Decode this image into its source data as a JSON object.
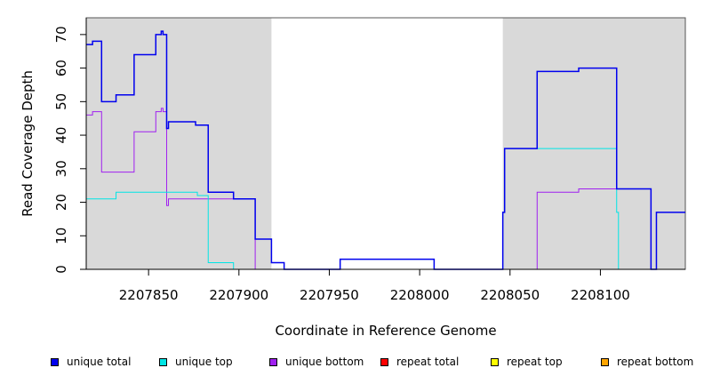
{
  "chart_data": {
    "type": "line",
    "title": "",
    "xlabel": "Coordinate in Reference Genome",
    "ylabel": "Read Coverage Depth",
    "xlim": [
      2207815.5,
      2208147
    ],
    "ylim": [
      0,
      75
    ],
    "xticks": [
      2207850,
      2207900,
      2207950,
      2208000,
      2208050,
      2208100
    ],
    "xtick_labels": [
      "2207850",
      "2207900",
      "2207950",
      "2208000",
      "2208050",
      "2208100"
    ],
    "yticks": [
      0,
      10,
      20,
      30,
      40,
      50,
      60,
      70
    ],
    "ytick_labels": [
      "0",
      "10",
      "20",
      "30",
      "40",
      "50",
      "60",
      "70"
    ],
    "shaded_regions": [
      {
        "from": 2207815.5,
        "to": 2207918,
        "color": "#d9d9d9"
      },
      {
        "from": 2208046,
        "to": 2208147,
        "color": "#d9d9d9"
      }
    ],
    "legend_position": "bottom",
    "series": [
      {
        "name": "unique total",
        "color": "#0000ee",
        "x": [
          2207815.5,
          2207819,
          2207823,
          2207824,
          2207831,
          2207832,
          2207841,
          2207842,
          2207853,
          2207854,
          2207857,
          2207858,
          2207860,
          2207861,
          2207875,
          2207876,
          2207882,
          2207883,
          2207896,
          2207897,
          2207908,
          2207909,
          2207917,
          2207918,
          2207924,
          2207925,
          2207955,
          2207956,
          2208007,
          2208008,
          2208046,
          2208047,
          2208064,
          2208065,
          2208087,
          2208088,
          2208108,
          2208109,
          2208127,
          2208128,
          2208130,
          2208131,
          2208147
        ],
        "y": [
          67,
          68,
          68,
          50,
          50,
          52,
          52,
          64,
          64,
          70,
          71,
          70,
          42,
          44,
          44,
          43,
          43,
          23,
          23,
          21,
          21,
          9,
          9,
          2,
          2,
          0,
          0,
          3,
          3,
          0,
          17,
          36,
          36,
          59,
          59,
          60,
          60,
          24,
          24,
          0,
          0,
          17,
          17
        ]
      },
      {
        "name": "unique top",
        "color": "#00e5e5",
        "x": [
          2207815.5,
          2207831,
          2207832,
          2207876,
          2207877,
          2207882,
          2207883,
          2207896,
          2207897,
          2207925,
          2207955,
          2207956,
          2208007,
          2208008,
          2208046,
          2208047,
          2208108,
          2208109,
          2208110,
          2208147
        ],
        "y": [
          21,
          21,
          23,
          23,
          22,
          22,
          2,
          2,
          0,
          0,
          0,
          3,
          3,
          0,
          17,
          36,
          36,
          17,
          0,
          0
        ]
      },
      {
        "name": "unique bottom",
        "color": "#a020f0",
        "x": [
          2207815.5,
          2207819,
          2207823,
          2207824,
          2207841,
          2207842,
          2207853,
          2207854,
          2207857,
          2207858,
          2207860,
          2207861,
          2207908,
          2207909,
          2208064,
          2208065,
          2208087,
          2208088,
          2208127,
          2208128,
          2208147
        ],
        "y": [
          46,
          47,
          47,
          29,
          29,
          41,
          41,
          47,
          48,
          47,
          19,
          21,
          21,
          0,
          0,
          23,
          23,
          24,
          24,
          0,
          0
        ]
      },
      {
        "name": "repeat total",
        "color": "#ff0000",
        "x": [
          2207815.5,
          2208147
        ],
        "y": [
          0,
          0
        ]
      },
      {
        "name": "repeat top",
        "color": "#ffff00",
        "x": [
          2207815.5,
          2208147
        ],
        "y": [
          0,
          0
        ]
      },
      {
        "name": "repeat bottom",
        "color": "#ffa500",
        "x": [
          2207815.5,
          2208147
        ],
        "y": [
          0,
          0
        ]
      }
    ]
  }
}
